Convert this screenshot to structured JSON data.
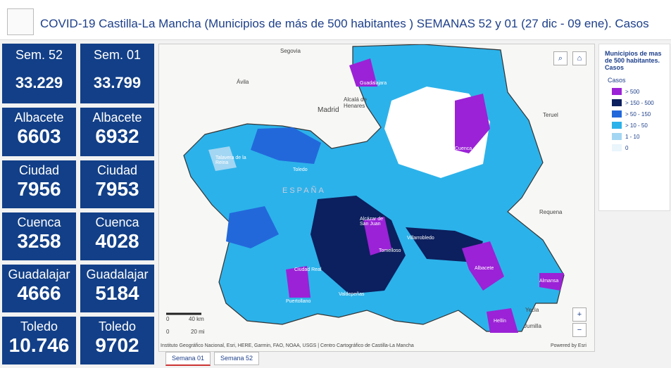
{
  "header": {
    "title": "COVID-19 Castilla-La Mancha (Municipios de más de 500 habitantes ) SEMANAS 52 y 01 (27 dic - 09 ene). Casos"
  },
  "tiles": [
    {
      "label": "Sem. 52",
      "value": "33.229"
    },
    {
      "label": "Sem. 01",
      "value": "33.799"
    },
    {
      "label": "Albacete",
      "value": "6603"
    },
    {
      "label": "Albacete",
      "value": "6932"
    },
    {
      "label": "Ciudad",
      "value": "7956"
    },
    {
      "label": "Ciudad",
      "value": "7953"
    },
    {
      "label": "Cuenca",
      "value": "3258"
    },
    {
      "label": "Cuenca",
      "value": "4028"
    },
    {
      "label": "Guadalajar",
      "value": "4666"
    },
    {
      "label": "Guadalajar",
      "value": "5184"
    },
    {
      "label": "Toledo",
      "value": "10.746"
    },
    {
      "label": "Toledo",
      "value": "9702"
    }
  ],
  "map": {
    "labels": [
      "Segovia",
      "Ávila",
      "Madrid",
      "Alcalá de Henares",
      "Teruel",
      "Requena",
      "Yecla",
      "Jumilla",
      "ESPAÑA"
    ],
    "cities": [
      "Talavera de la Reina",
      "Toledo",
      "Guadalajara",
      "Cuenca",
      "Alcázar de San Juan",
      "Tomelloso",
      "Villarrobledo",
      "Ciudad Real",
      "Valdepeñas",
      "Puertollano",
      "Albacete",
      "Almansa",
      "Hellín"
    ],
    "scale": [
      "0",
      "40 km",
      "0",
      "20 mi"
    ],
    "attribution": "Instituto Geográfico Nacional, Esri, HERE, Garmin, FAO, NOAA, USGS | Centro Cartográfico de Castilla-La Mancha",
    "powered": "Powered by Esri"
  },
  "legend": {
    "title": "Municipios de mas de 500 habitantes. Casos",
    "subtitle": "Casos",
    "items": [
      {
        "label": "> 500",
        "color": "#9b22d6"
      },
      {
        "label": "> 150 - 500",
        "color": "#0c1f5e"
      },
      {
        "label": "> 50 - 150",
        "color": "#2268db"
      },
      {
        "label": "> 10 - 50",
        "color": "#2cb2ea"
      },
      {
        "label": "1 - 10",
        "color": "#a3d6f2"
      },
      {
        "label": "0",
        "color": "#eaf5fc"
      }
    ]
  },
  "tabs": [
    "Semana 01",
    "Semana 52"
  ]
}
